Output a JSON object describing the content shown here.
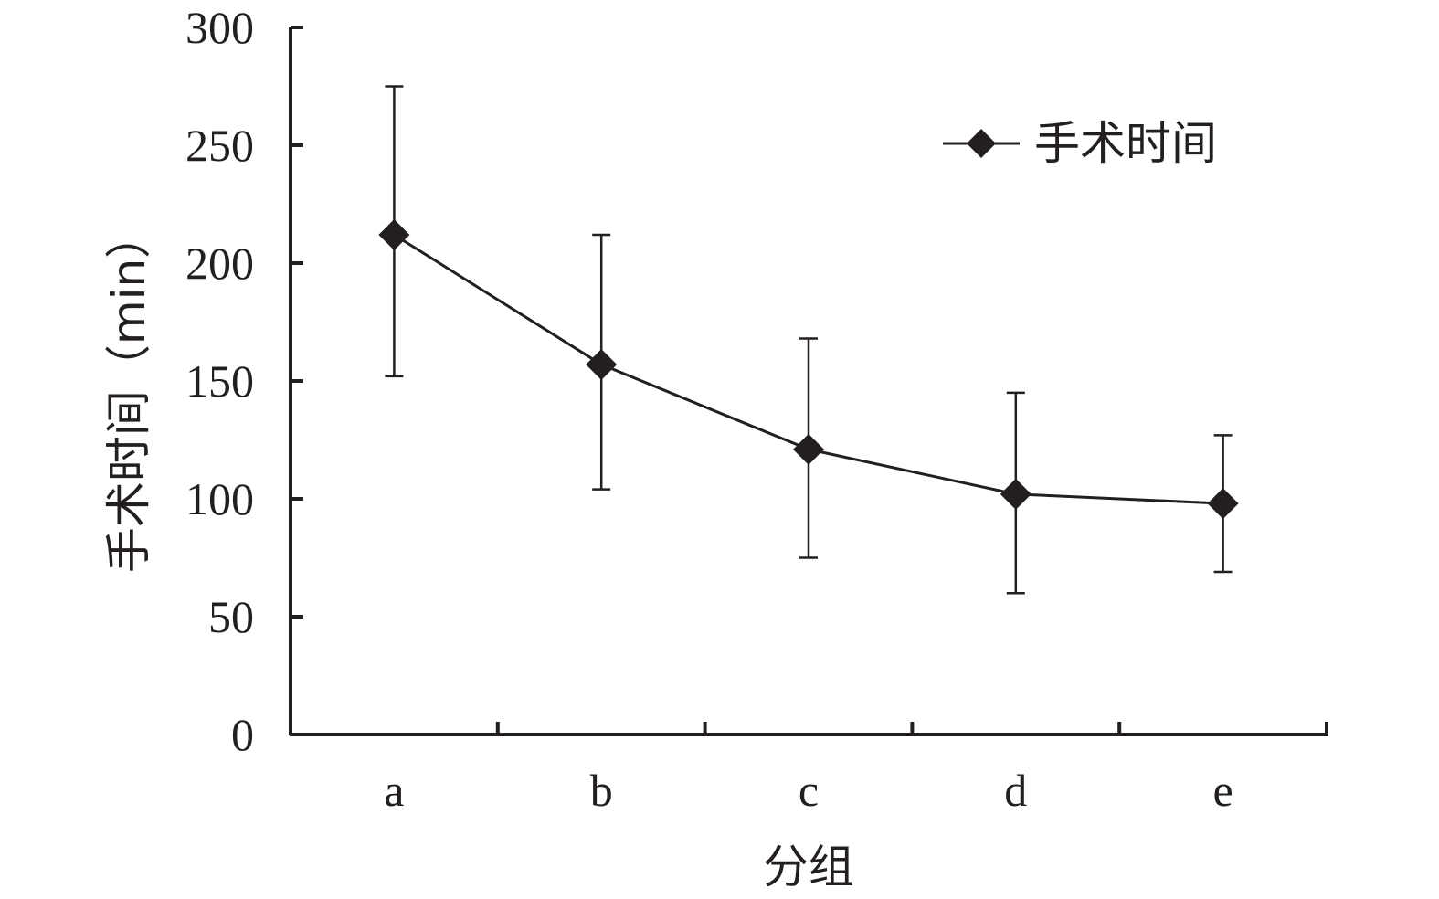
{
  "chart_data": {
    "type": "line",
    "title": "",
    "xlabel": "分组",
    "ylabel": "手术时间（min）",
    "categories": [
      "a",
      "b",
      "c",
      "d",
      "e"
    ],
    "ylim": [
      0,
      300
    ],
    "yticks": [
      0,
      50,
      100,
      150,
      200,
      250,
      300
    ],
    "grid": false,
    "legend_position": "top-right",
    "series": [
      {
        "name": "手术时间",
        "marker": "diamond",
        "color": "#231f20",
        "values": [
          212,
          157,
          121,
          102,
          98
        ],
        "error_upper": [
          275,
          212,
          168,
          145,
          127
        ],
        "error_lower": [
          152,
          104,
          75,
          60,
          69
        ]
      }
    ]
  }
}
